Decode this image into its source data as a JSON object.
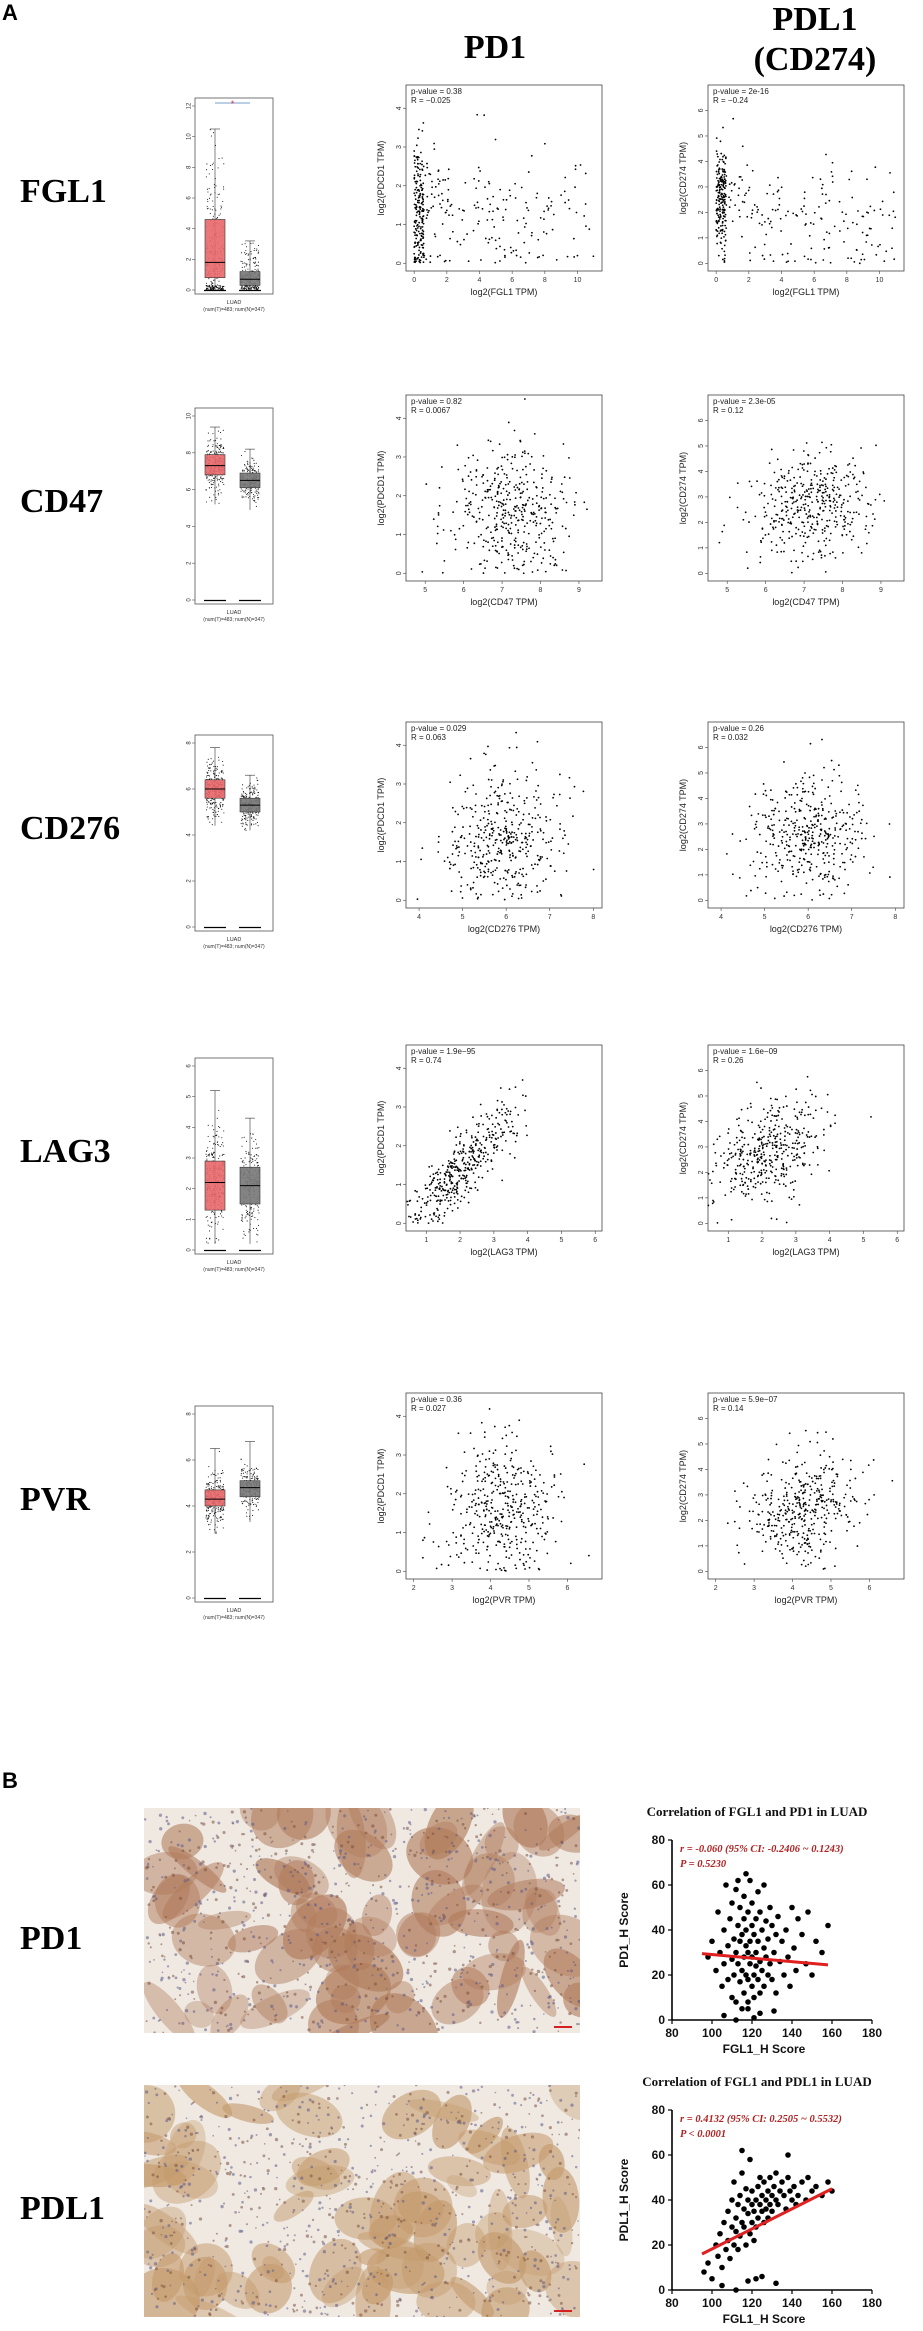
{
  "panel_a": {
    "label": "A",
    "col_headers": {
      "pd1": "PD1",
      "pdl1_line1": "PDL1",
      "pdl1_line2": "(CD274)"
    },
    "rows": [
      {
        "gene": "FGL1",
        "box": {
          "ylim": [
            0,
            12
          ],
          "ticks": [
            0,
            2,
            4,
            6,
            8,
            10,
            12
          ],
          "tumor": {
            "q1": 0.8,
            "med": 1.8,
            "q3": 4.6,
            "lo": 0,
            "hi": 10.5,
            "n": 260,
            "spread": 3.5
          },
          "normal": {
            "q1": 0.3,
            "med": 0.7,
            "q3": 1.2,
            "lo": 0,
            "hi": 3.2,
            "n": 200,
            "spread": 1.2
          },
          "xlabel": "LUAD",
          "nlabel": "(num(T)=483; num(N)=347)",
          "sig": "*"
        },
        "pd1": {
          "pval": "p-value = 0.38",
          "r": "R = −0.025",
          "xlabel": "log2(FGL1 TPM)",
          "ylabel": "log2(PDCD1 TPM)",
          "xlim": [
            -0.5,
            11.5
          ],
          "ylim": [
            -0.2,
            4.6
          ],
          "xticks": [
            0,
            2,
            4,
            6,
            8,
            10
          ],
          "yticks": [
            0,
            1,
            2,
            3,
            4
          ],
          "gen": {
            "type": "skew",
            "xmax": 11,
            "yc": 1.3,
            "ys": 0.9,
            "n": 380,
            "seed": 11,
            "slope": -0.02
          }
        },
        "pdl1": {
          "pval": "p-value = 2e-16",
          "r": "R = −0.24",
          "xlabel": "log2(FGL1 TPM)",
          "ylabel": "log2(CD274 TPM)",
          "xlim": [
            -0.5,
            11.5
          ],
          "ylim": [
            -0.3,
            7
          ],
          "xticks": [
            0,
            2,
            4,
            6,
            8,
            10
          ],
          "yticks": [
            0,
            1,
            2,
            3,
            4,
            5,
            6
          ],
          "gen": {
            "type": "skew",
            "xmax": 11,
            "yc": 2.5,
            "ys": 1.1,
            "n": 380,
            "seed": 12,
            "slope": -0.12
          }
        }
      },
      {
        "gene": "CD47",
        "box": {
          "ylim": [
            0,
            10
          ],
          "ticks": [
            0,
            2,
            4,
            6,
            8,
            10
          ],
          "tumor": {
            "q1": 6.8,
            "med": 7.3,
            "q3": 7.9,
            "lo": 5.2,
            "hi": 9.4,
            "n": 260,
            "spread": 0.8
          },
          "normal": {
            "q1": 6.1,
            "med": 6.5,
            "q3": 6.9,
            "lo": 4.9,
            "hi": 8.2,
            "n": 200,
            "spread": 0.6
          },
          "xlabel": "LUAD",
          "nlabel": "(num(T)=483; num(N)=347)",
          "sig": ""
        },
        "pd1": {
          "pval": "p-value = 0.82",
          "r": "R = 0.0067",
          "xlabel": "log2(CD47 TPM)",
          "ylabel": "log2(PDCD1 TPM)",
          "xlim": [
            4.5,
            9.6
          ],
          "ylim": [
            -0.2,
            4.6
          ],
          "xticks": [
            5,
            6,
            7,
            8,
            9
          ],
          "yticks": [
            0,
            1,
            2,
            3,
            4
          ],
          "gen": {
            "type": "norm",
            "xc": 7.2,
            "xs": 0.8,
            "yc": 1.6,
            "ys": 0.9,
            "n": 420,
            "seed": 21,
            "slope": 0.0
          }
        },
        "pdl1": {
          "pval": "p-value = 2.3e-05",
          "r": "R = 0.12",
          "xlabel": "log2(CD47 TPM)",
          "ylabel": "log2(CD274 TPM)",
          "xlim": [
            4.5,
            9.6
          ],
          "ylim": [
            -0.3,
            7
          ],
          "xticks": [
            5,
            6,
            7,
            8,
            9
          ],
          "yticks": [
            0,
            1,
            2,
            3,
            4,
            5,
            6
          ],
          "gen": {
            "type": "norm",
            "xc": 7.2,
            "xs": 0.8,
            "yc": 2.6,
            "ys": 1.1,
            "n": 420,
            "seed": 22,
            "slope": 0.25
          }
        }
      },
      {
        "gene": "CD276",
        "box": {
          "ylim": [
            0,
            8
          ],
          "ticks": [
            0,
            2,
            4,
            6,
            8
          ],
          "tumor": {
            "q1": 5.6,
            "med": 6.0,
            "q3": 6.4,
            "lo": 4.4,
            "hi": 7.8,
            "n": 260,
            "spread": 0.6
          },
          "normal": {
            "q1": 5.0,
            "med": 5.3,
            "q3": 5.6,
            "lo": 4.2,
            "hi": 6.6,
            "n": 200,
            "spread": 0.5
          },
          "xlabel": "LUAD",
          "nlabel": "(num(T)=483; num(N)=347)",
          "sig": ""
        },
        "pd1": {
          "pval": "p-value = 0.029",
          "r": "R = 0.063",
          "xlabel": "log2(CD276 TPM)",
          "ylabel": "log2(PDCD1 TPM)",
          "xlim": [
            3.7,
            8.2
          ],
          "ylim": [
            -0.2,
            4.6
          ],
          "xticks": [
            4,
            5,
            6,
            7,
            8
          ],
          "yticks": [
            0,
            1,
            2,
            3,
            4
          ],
          "gen": {
            "type": "norm",
            "xc": 6.0,
            "xs": 0.65,
            "yc": 1.6,
            "ys": 0.9,
            "n": 420,
            "seed": 31,
            "slope": 0.15
          }
        },
        "pdl1": {
          "pval": "p-value = 0.26",
          "r": "R = 0.032",
          "xlabel": "log2(CD276 TPM)",
          "ylabel": "log2(CD274 TPM)",
          "xlim": [
            3.7,
            8.2
          ],
          "ylim": [
            -0.3,
            7
          ],
          "xticks": [
            4,
            5,
            6,
            7,
            8
          ],
          "yticks": [
            0,
            1,
            2,
            3,
            4,
            5,
            6
          ],
          "gen": {
            "type": "norm",
            "xc": 6.0,
            "xs": 0.65,
            "yc": 2.5,
            "ys": 1.1,
            "n": 420,
            "seed": 32,
            "slope": 0.08
          }
        }
      },
      {
        "gene": "LAG3",
        "box": {
          "ylim": [
            0,
            6
          ],
          "ticks": [
            0,
            1,
            2,
            3,
            4,
            5,
            6
          ],
          "tumor": {
            "q1": 1.3,
            "med": 2.2,
            "q3": 2.9,
            "lo": 0.2,
            "hi": 5.2,
            "n": 260,
            "spread": 0.9
          },
          "normal": {
            "q1": 1.5,
            "med": 2.1,
            "q3": 2.7,
            "lo": 0.2,
            "hi": 4.3,
            "n": 200,
            "spread": 0.8
          },
          "xlabel": "LUAD",
          "nlabel": "(num(T)=483; num(N)=347)",
          "sig": ""
        },
        "pd1": {
          "pval": "p-value = 1.9e−95",
          "r": "R = 0.74",
          "xlabel": "log2(LAG3 TPM)",
          "ylabel": "log2(PDCD1 TPM)",
          "xlim": [
            0.4,
            6.2
          ],
          "ylim": [
            -0.2,
            4.6
          ],
          "xticks": [
            1,
            2,
            3,
            4,
            5,
            6
          ],
          "yticks": [
            0,
            1,
            2,
            3,
            4
          ],
          "gen": {
            "type": "corr",
            "xc": 2.1,
            "xs": 0.85,
            "a": -0.3,
            "b": 0.85,
            "ys": 0.45,
            "n": 420,
            "seed": 41
          }
        },
        "pdl1": {
          "pval": "p-value = 1.6e−09",
          "r": "R = 0.26",
          "xlabel": "log2(LAG3 TPM)",
          "ylabel": "log2(CD274 TPM)",
          "xlim": [
            0.4,
            6.2
          ],
          "ylim": [
            -0.3,
            7
          ],
          "xticks": [
            1,
            2,
            3,
            4,
            5,
            6
          ],
          "yticks": [
            0,
            1,
            2,
            3,
            4,
            5,
            6
          ],
          "gen": {
            "type": "corr",
            "xc": 2.1,
            "xs": 0.85,
            "a": 1.8,
            "b": 0.45,
            "ys": 1.0,
            "n": 420,
            "seed": 42
          }
        }
      },
      {
        "gene": "PVR",
        "box": {
          "ylim": [
            0,
            8
          ],
          "ticks": [
            0,
            2,
            4,
            6,
            8
          ],
          "tumor": {
            "q1": 4.0,
            "med": 4.3,
            "q3": 4.7,
            "lo": 2.8,
            "hi": 6.5,
            "n": 260,
            "spread": 0.6
          },
          "normal": {
            "q1": 4.4,
            "med": 4.8,
            "q3": 5.1,
            "lo": 3.3,
            "hi": 6.8,
            "n": 200,
            "spread": 0.5
          },
          "xlabel": "LUAD",
          "nlabel": "(num(T)=483; num(N)=347)",
          "sig": ""
        },
        "pd1": {
          "pval": "p-value = 0.36",
          "r": "R = 0.027",
          "xlabel": "log2(PVR TPM)",
          "ylabel": "log2(PDCD1 TPM)",
          "xlim": [
            1.8,
            6.9
          ],
          "ylim": [
            -0.2,
            4.6
          ],
          "xticks": [
            2,
            3,
            4,
            5,
            6
          ],
          "yticks": [
            0,
            1,
            2,
            3,
            4
          ],
          "gen": {
            "type": "norm",
            "xc": 4.3,
            "xs": 0.7,
            "yc": 1.6,
            "ys": 0.9,
            "n": 420,
            "seed": 51,
            "slope": 0.05
          }
        },
        "pdl1": {
          "pval": "p-value = 5.9e−07",
          "r": "R = 0.14",
          "xlabel": "log2(PVR TPM)",
          "ylabel": "log2(CD274 TPM)",
          "xlim": [
            1.8,
            6.9
          ],
          "ylim": [
            -0.3,
            7
          ],
          "xticks": [
            2,
            3,
            4,
            5,
            6
          ],
          "yticks": [
            0,
            1,
            2,
            3,
            4,
            5,
            6
          ],
          "gen": {
            "type": "norm",
            "xc": 4.3,
            "xs": 0.7,
            "yc": 2.6,
            "ys": 1.1,
            "n": 420,
            "seed": 52,
            "slope": 0.3
          }
        }
      }
    ]
  },
  "panel_b": {
    "label": "B",
    "rows": [
      {
        "label": "PD1",
        "tint": "#b07a5a",
        "seed": 61
      },
      {
        "label": "PDL1",
        "tint": "#c49a6c",
        "seed": 62
      }
    ]
  },
  "chart_data": [
    {
      "type": "scatter",
      "title": "Correlation of FGL1 and PD1 in LUAD",
      "annotation_r": "r = -0.060 (95% CI: -0.2406 ~ 0.1243)",
      "annotation_p": "P = 0.5230",
      "xlabel": "FGL1_H Score",
      "ylabel": "PD1_H Score",
      "xlim": [
        80,
        180
      ],
      "ylim": [
        0,
        80
      ],
      "xticks": [
        80,
        100,
        120,
        140,
        160,
        180
      ],
      "yticks": [
        0,
        20,
        40,
        60,
        80
      ],
      "fit": {
        "x": [
          95,
          158
        ],
        "y": [
          29.5,
          24.5
        ]
      },
      "x": [
        98,
        100,
        102,
        103,
        104,
        105,
        106,
        106,
        107,
        108,
        108,
        109,
        110,
        110,
        110,
        111,
        111,
        112,
        112,
        112,
        113,
        113,
        113,
        114,
        114,
        114,
        115,
        115,
        115,
        116,
        116,
        116,
        116,
        117,
        117,
        117,
        118,
        118,
        118,
        118,
        119,
        119,
        119,
        120,
        120,
        120,
        120,
        121,
        121,
        121,
        122,
        122,
        122,
        123,
        123,
        123,
        124,
        124,
        124,
        125,
        125,
        126,
        126,
        126,
        127,
        127,
        128,
        128,
        129,
        129,
        130,
        130,
        131,
        132,
        132,
        133,
        134,
        135,
        136,
        137,
        138,
        139,
        140,
        141,
        142,
        143,
        145,
        147,
        148,
        150,
        152,
        155,
        158,
        106,
        112,
        118,
        124,
        131,
        117,
        121
      ],
      "y": [
        28,
        35,
        22,
        48,
        30,
        15,
        40,
        25,
        60,
        18,
        33,
        45,
        27,
        10,
        52,
        36,
        20,
        58,
        30,
        8,
        42,
        25,
        62,
        17,
        35,
        50,
        22,
        5,
        38,
        28,
        45,
        12,
        55,
        33,
        20,
        40,
        8,
        30,
        48,
        18,
        25,
        62,
        35,
        15,
        42,
        28,
        52,
        20,
        38,
        10,
        45,
        30,
        24,
        57,
        18,
        35,
        26,
        48,
        12,
        40,
        22,
        32,
        60,
        15,
        44,
        28,
        36,
        20,
        50,
        25,
        18,
        42,
        30,
        38,
        12,
        46,
        26,
        35,
        20,
        40,
        28,
        15,
        50,
        32,
        22,
        45,
        38,
        25,
        48,
        20,
        35,
        30,
        42,
        2,
        0,
        5,
        3,
        4,
        65,
        1
      ]
    },
    {
      "type": "scatter",
      "title": "Correlation of FGL1 and PDL1 in LUAD",
      "annotation_r": "r = 0.4132 (95% CI: 0.2505 ~ 0.5532)",
      "annotation_p": "P < 0.0001",
      "xlabel": "FGL1_H Score",
      "ylabel": "PDL1_H Score",
      "xlim": [
        80,
        180
      ],
      "ylim": [
        0,
        80
      ],
      "xticks": [
        80,
        100,
        120,
        140,
        160,
        180
      ],
      "yticks": [
        0,
        20,
        40,
        60,
        80
      ],
      "fit": {
        "x": [
          95,
          160
        ],
        "y": [
          16,
          45
        ]
      },
      "x": [
        96,
        98,
        100,
        102,
        103,
        104,
        105,
        106,
        107,
        108,
        108,
        109,
        110,
        110,
        111,
        111,
        112,
        112,
        113,
        113,
        114,
        114,
        115,
        115,
        116,
        116,
        117,
        117,
        118,
        118,
        119,
        119,
        120,
        120,
        120,
        121,
        121,
        122,
        122,
        123,
        123,
        124,
        124,
        125,
        125,
        126,
        126,
        127,
        127,
        128,
        128,
        129,
        129,
        130,
        130,
        131,
        132,
        132,
        133,
        134,
        135,
        136,
        137,
        138,
        139,
        140,
        141,
        142,
        143,
        145,
        147,
        148,
        150,
        152,
        155,
        158,
        160,
        105,
        112,
        118,
        125,
        132,
        138,
        115,
        122
      ],
      "y": [
        8,
        12,
        5,
        20,
        15,
        25,
        10,
        30,
        18,
        22,
        35,
        14,
        28,
        40,
        20,
        48,
        26,
        32,
        38,
        18,
        42,
        24,
        30,
        52,
        28,
        36,
        20,
        45,
        34,
        40,
        25,
        58,
        30,
        38,
        44,
        22,
        35,
        40,
        28,
        46,
        32,
        38,
        50,
        35,
        42,
        30,
        48,
        36,
        40,
        44,
        32,
        50,
        38,
        42,
        35,
        46,
        40,
        52,
        38,
        44,
        48,
        42,
        36,
        50,
        44,
        40,
        46,
        38,
        42,
        48,
        40,
        50,
        44,
        46,
        42,
        48,
        44,
        2,
        0,
        4,
        6,
        3,
        60,
        62,
        5
      ]
    }
  ]
}
